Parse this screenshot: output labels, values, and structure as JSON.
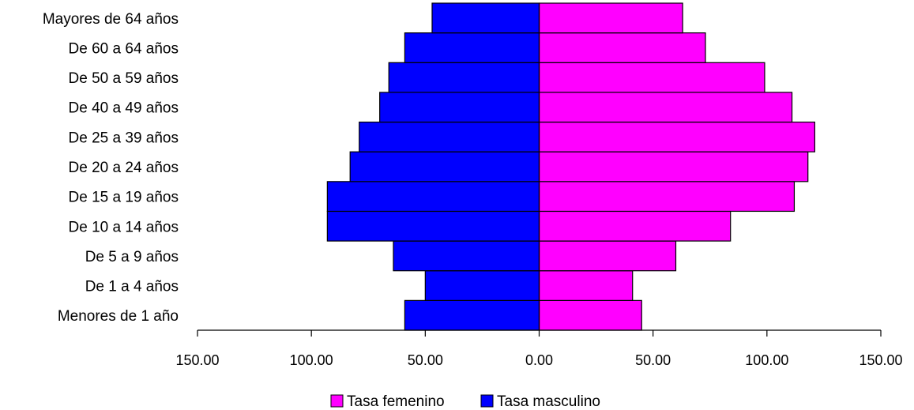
{
  "chart_data": {
    "type": "bar",
    "orientation": "horizontal",
    "layout": "population-pyramid",
    "categories": [
      "Menores de 1 año",
      "De 1 a 4 años",
      "De 5 a 9 años",
      "De 10 a 14 años",
      "De 15 a 19 años",
      "De 20 a 24 años",
      "De 25 a 39 años",
      "De 40 a 49 años",
      "De 50 a 59 años",
      "De 60 a 64 años",
      "Mayores de 64 años"
    ],
    "series": [
      {
        "name": "Tasa femenino",
        "color": "#ff00ff",
        "side": "right",
        "values": [
          45,
          41,
          60,
          84,
          112,
          118,
          121,
          111,
          99,
          73,
          63
        ]
      },
      {
        "name": "Tasa masculino",
        "color": "#0000ff",
        "side": "left",
        "values": [
          59,
          50,
          64,
          93,
          93,
          83,
          79,
          70,
          66,
          59,
          47
        ]
      }
    ],
    "xlim": [
      -150,
      150
    ],
    "xticks": [
      -150,
      -100,
      -50,
      0,
      50,
      100,
      150
    ],
    "xtick_labels": [
      "150.00",
      "100.00",
      "50.00",
      "0.00",
      "50.00",
      "100.00",
      "150.00"
    ],
    "title": "",
    "xlabel": "",
    "ylabel": "",
    "grid": false,
    "legend_position": "bottom"
  }
}
